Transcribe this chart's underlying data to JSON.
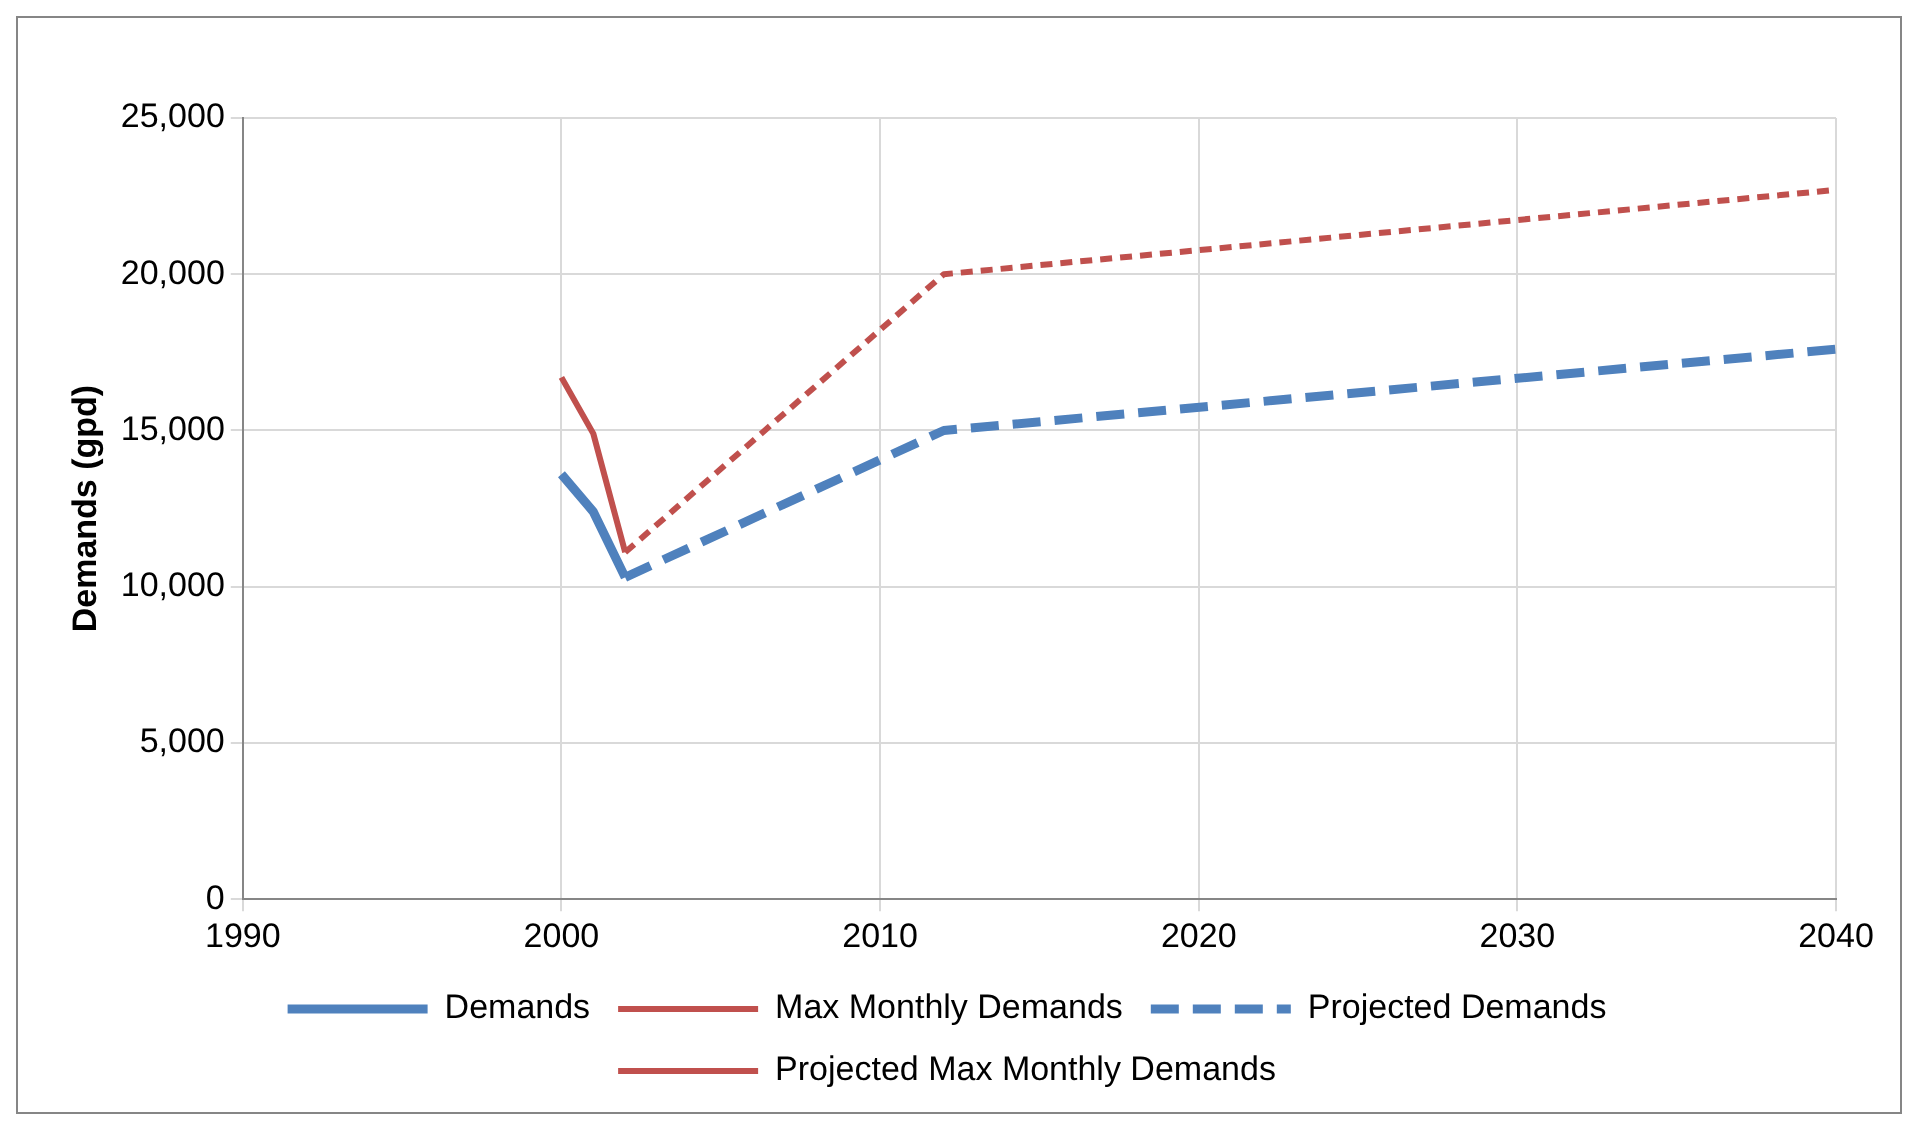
{
  "chart_data": {
    "type": "line",
    "ylabel": "Demands (gpd)",
    "xlim": [
      1990,
      2040
    ],
    "xticks": [
      1990,
      2000,
      2010,
      2020,
      2030,
      2040
    ],
    "ylim": [
      0,
      25000
    ],
    "yticks": [
      0,
      {
        "value": 5000,
        "label": "5,000"
      },
      {
        "value": 10000,
        "label": "10,000"
      },
      {
        "value": 15000,
        "label": "15,000"
      },
      {
        "value": 20000,
        "label": "20,000"
      },
      {
        "value": 25000,
        "label": "25,000"
      }
    ],
    "grid": true,
    "legend": "bottom",
    "marker": "none",
    "series": [
      {
        "name": "Demands",
        "color": "#4f81bd",
        "line_style": "solid",
        "x": [
          2000,
          2001,
          2002
        ],
        "values": [
          13600,
          12400,
          10300
        ]
      },
      {
        "name": "Max Monthly Demands",
        "color": "#c0504d",
        "line_style": "solid",
        "x": [
          2000,
          2001,
          2002
        ],
        "values": [
          16700,
          14900,
          11100
        ]
      },
      {
        "name": "Projected Demands",
        "color": "#4f81bd",
        "line_style": "dashed",
        "x": [
          2002,
          2012,
          2040
        ],
        "values": [
          10300,
          15000,
          17600
        ]
      },
      {
        "name": "Projected Max Monthly Demands",
        "color": "#c0504d",
        "line_style": "dotted",
        "x": [
          2002,
          2012,
          2040
        ],
        "values": [
          11100,
          20000,
          22700
        ]
      }
    ]
  }
}
